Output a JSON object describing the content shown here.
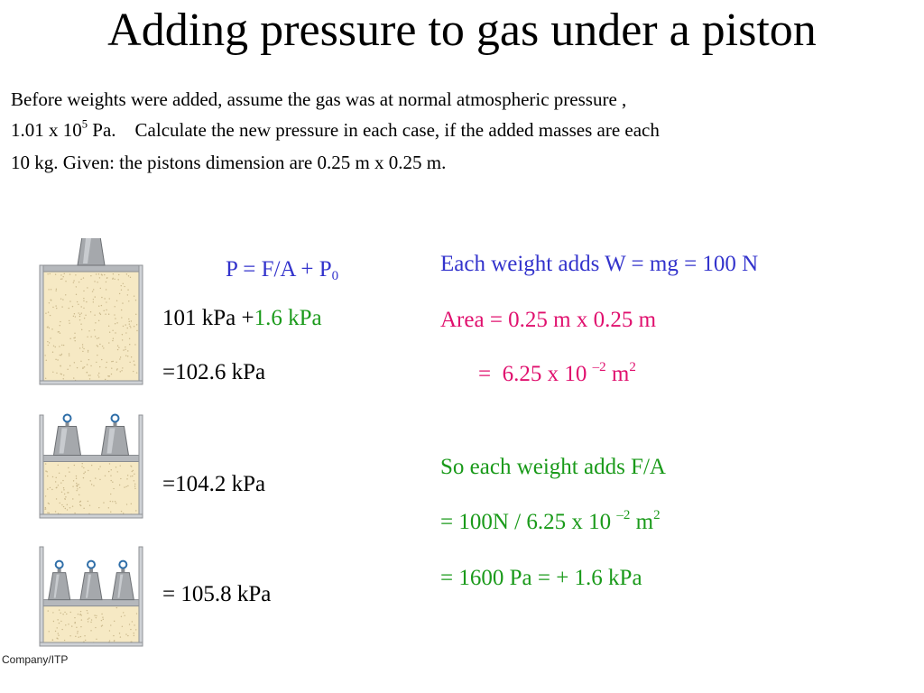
{
  "title": "Adding pressure to gas under a piston",
  "intro": {
    "line1": "Before weights were added, assume the gas was at normal atmospheric pressure ,",
    "line2_a": "1.01 x 10",
    "line2_sup": "5",
    "line2_b": " Pa.    Calculate the new pressure in each case, if the added masses are each",
    "line3": "10 kg. Given: the pistons dimension are 0.25 m x  0.25 m."
  },
  "formula": {
    "main": "P = F/A + P",
    "sub": "0"
  },
  "case1": {
    "a": "101 kPa +",
    "b": "1.6 kPa",
    "result": "=102.6 kPa"
  },
  "case2": {
    "result": "=104.2 kPa"
  },
  "case3": {
    "result": "= 105.8 kPa"
  },
  "calc": {
    "weight": "Each weight adds W = mg = 100 N",
    "area": "Area =  0.25 m  x 0.25 m",
    "area2_a": "=  6.25 x 10 ",
    "area2_sup": "–2",
    "area2_b": " m",
    "area2_sup2": "2",
    "fa_intro": "So each weight adds  F/A",
    "fa1_a": "= 100N / 6.25 x 10 ",
    "fa1_sup": "–2",
    "fa1_b": " m",
    "fa1_sup2": "2",
    "fa2": "= 1600 Pa = + 1.6 kPa"
  },
  "credit": "Company/ITP",
  "colors": {
    "blue": "#3333cc",
    "green": "#1a9a1a",
    "magenta": "#e0106e"
  },
  "diagrams": [
    {
      "weights": 1,
      "gas_fraction": 1.0
    },
    {
      "weights": 2,
      "gas_fraction": 0.55
    },
    {
      "weights": 3,
      "gas_fraction": 0.4
    }
  ]
}
